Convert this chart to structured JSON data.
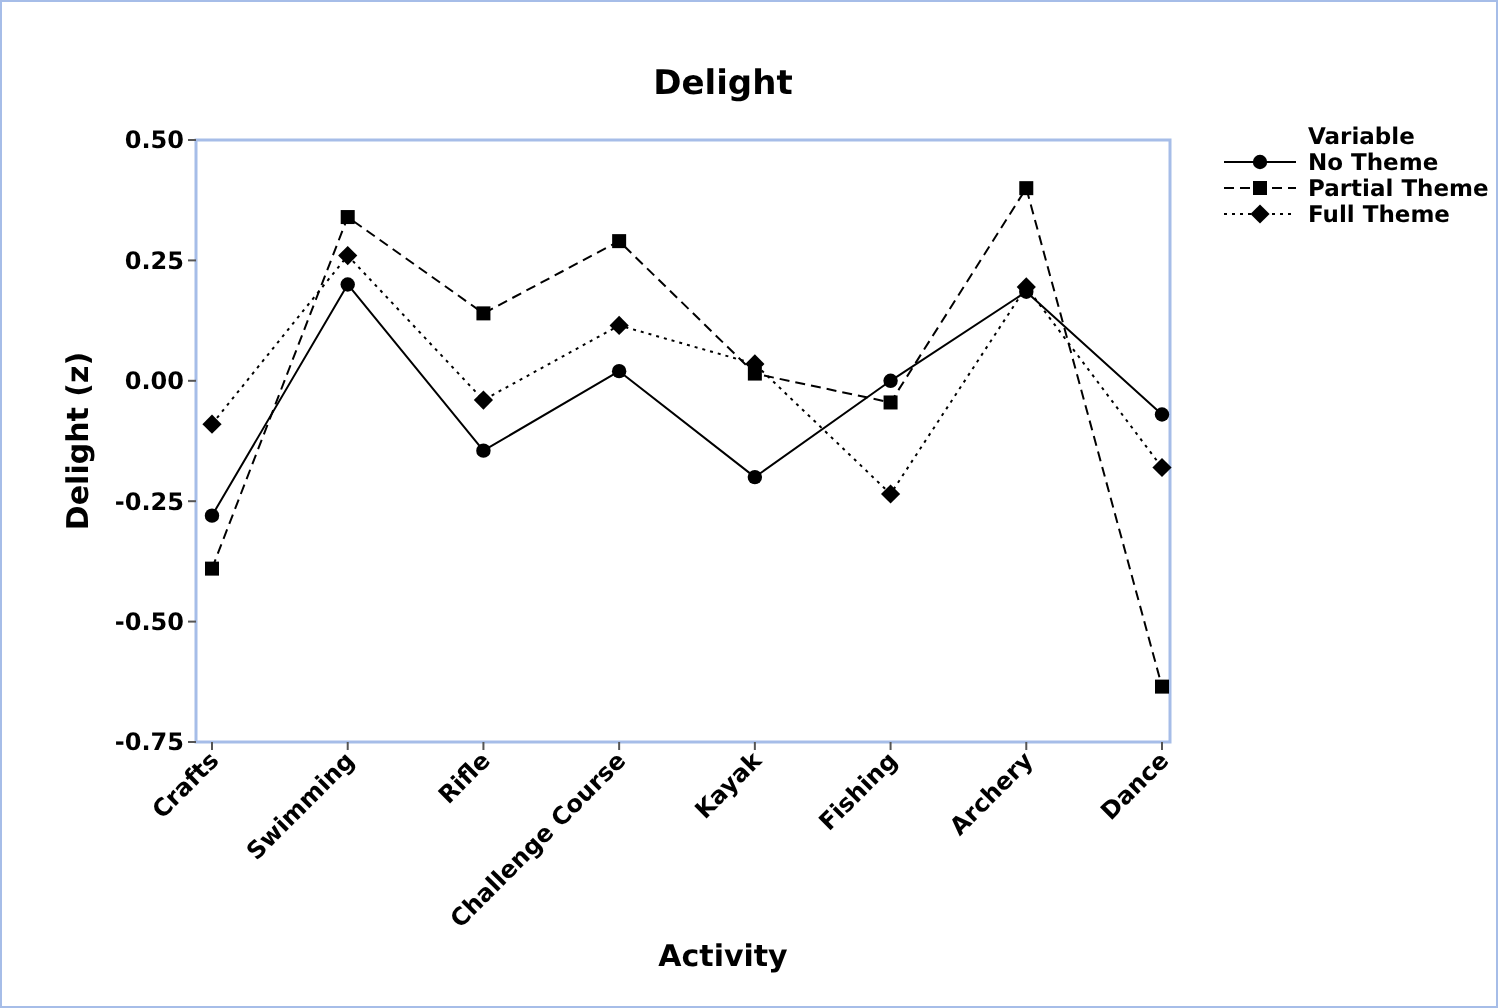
{
  "chart_data": {
    "type": "line",
    "title": "Delight",
    "xlabel": "Activity",
    "ylabel": "Delight (z)",
    "legend_title": "Variable",
    "legend": "top right",
    "categories": [
      "Crafts",
      "Swimming",
      "Rifle",
      "Challenge Course",
      "Kayak",
      "Fishing",
      "Archery",
      "Dance"
    ],
    "ylim": [
      -0.75,
      0.5
    ],
    "yticks": [
      {
        "value": -0.75,
        "label": "-0.75"
      },
      {
        "value": -0.5,
        "label": "-0.50"
      },
      {
        "value": -0.25,
        "label": "-0.25"
      },
      {
        "value": 0,
        "label": "0.00"
      },
      {
        "value": 0.25,
        "label": "0.25"
      },
      {
        "value": 0.5,
        "label": "0.50"
      }
    ],
    "series": [
      {
        "name": "No Theme",
        "color": "#000000",
        "marker": "circle",
        "line_style": "solid",
        "values": [
          -0.28,
          0.2,
          -0.145,
          0.02,
          -0.2,
          0.0,
          0.185,
          -0.07
        ]
      },
      {
        "name": "Partial Theme",
        "color": "#000000",
        "marker": "square",
        "line_style": "dashed",
        "values": [
          -0.39,
          0.34,
          0.14,
          0.29,
          0.015,
          -0.045,
          0.4,
          -0.635
        ]
      },
      {
        "name": "Full Theme",
        "color": "#000000",
        "marker": "diamond",
        "line_style": "dotted",
        "values": [
          -0.09,
          0.26,
          -0.04,
          0.115,
          0.035,
          -0.235,
          0.195,
          -0.18
        ]
      }
    ]
  }
}
